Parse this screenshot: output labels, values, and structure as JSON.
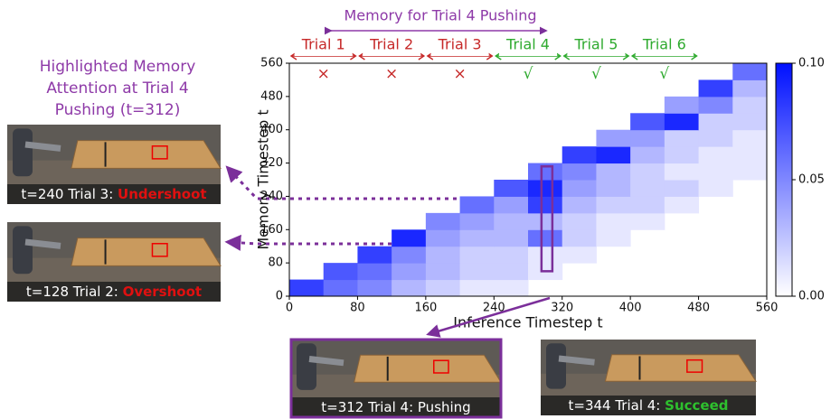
{
  "chart_data": {
    "type": "heatmap",
    "title": "Memory for Trial 4 Pushing",
    "x_label": "Inference Timestep t",
    "y_label": "Memory Timestep t",
    "xlim": [
      0,
      560
    ],
    "ylim": [
      0,
      560
    ],
    "xticks": [
      0,
      80,
      160,
      240,
      320,
      400,
      480,
      560
    ],
    "yticks": [
      0,
      80,
      160,
      240,
      320,
      400,
      480,
      560
    ],
    "x_bins": [
      0,
      40,
      80,
      120,
      160,
      200,
      240,
      280,
      320,
      360,
      400,
      440,
      480,
      520,
      560
    ],
    "y_bins": [
      0,
      40,
      80,
      120,
      160,
      200,
      240,
      280,
      320,
      360,
      400,
      440,
      480,
      520,
      560
    ],
    "zlim": [
      0,
      0.1
    ],
    "zticks": [
      {
        "value": 0,
        "label": "0.00"
      },
      {
        "value": 0.05,
        "label": "0.05"
      },
      {
        "value": 0.1,
        "label": "0.10"
      }
    ],
    "colormap": [
      "#ffffff",
      "#0010ff"
    ],
    "z": [
      [
        0.08,
        0.06,
        0.05,
        0.03,
        0.02,
        0.01,
        0.01,
        null,
        null,
        null,
        null,
        null,
        null,
        null
      ],
      [
        null,
        0.07,
        0.06,
        0.04,
        0.03,
        0.02,
        0.02,
        0.01,
        null,
        null,
        null,
        null,
        null,
        null
      ],
      [
        null,
        null,
        0.08,
        0.05,
        0.03,
        0.02,
        0.02,
        0.01,
        0.01,
        null,
        null,
        null,
        null,
        null
      ],
      [
        null,
        null,
        null,
        0.09,
        0.04,
        0.03,
        0.03,
        0.06,
        0.02,
        0.01,
        null,
        null,
        null,
        null
      ],
      [
        null,
        null,
        null,
        null,
        0.05,
        0.04,
        0.03,
        0.03,
        0.02,
        0.01,
        0.01,
        null,
        null,
        null
      ],
      [
        null,
        null,
        null,
        null,
        null,
        0.06,
        0.04,
        0.08,
        0.03,
        0.02,
        0.02,
        0.01,
        null,
        null
      ],
      [
        null,
        null,
        null,
        null,
        null,
        null,
        0.07,
        0.09,
        0.04,
        0.03,
        0.02,
        0.02,
        0.01,
        null
      ],
      [
        null,
        null,
        null,
        null,
        null,
        null,
        null,
        0.06,
        0.05,
        0.03,
        0.02,
        0.01,
        0.01,
        0.01
      ],
      [
        null,
        null,
        null,
        null,
        null,
        null,
        null,
        null,
        0.08,
        0.09,
        0.03,
        0.02,
        0.01,
        0.01
      ],
      [
        null,
        null,
        null,
        null,
        null,
        null,
        null,
        null,
        null,
        0.04,
        0.04,
        0.02,
        0.02,
        0.01
      ],
      [
        null,
        null,
        null,
        null,
        null,
        null,
        null,
        null,
        null,
        null,
        0.07,
        0.09,
        0.02,
        0.02
      ],
      [
        null,
        null,
        null,
        null,
        null,
        null,
        null,
        null,
        null,
        null,
        null,
        0.04,
        0.05,
        0.02
      ],
      [
        null,
        null,
        null,
        null,
        null,
        null,
        null,
        null,
        null,
        null,
        null,
        null,
        0.08,
        0.03
      ],
      [
        null,
        null,
        null,
        null,
        null,
        null,
        null,
        null,
        null,
        null,
        null,
        null,
        null,
        0.06
      ]
    ],
    "trials": [
      {
        "label": "Trial 1",
        "mark": "×",
        "color": "#c62828"
      },
      {
        "label": "Trial 2",
        "mark": "×",
        "color": "#c62828"
      },
      {
        "label": "Trial 3",
        "mark": "×",
        "color": "#c62828"
      },
      {
        "label": "Trial 4",
        "mark": "√",
        "color": "#2eaa2e"
      },
      {
        "label": "Trial 5",
        "mark": "√",
        "color": "#2eaa2e"
      },
      {
        "label": "Trial 6",
        "mark": "√",
        "color": "#2eaa2e"
      }
    ],
    "side_note": [
      "Highlighted Memory",
      "Attention at Trial 4",
      "Pushing (t=312)"
    ],
    "panels": [
      {
        "caption": "t=240  Trial 3: ",
        "outcome": "Undershoot",
        "outcome_color": "#e01010"
      },
      {
        "caption": "t=128  Trial 2: ",
        "outcome": "Overshoot",
        "outcome_color": "#e01010"
      },
      {
        "caption": "t=312  Trial 4: Pushing"
      },
      {
        "caption": "t=344  Trial 4: ",
        "outcome": "Succeed",
        "outcome_color": "#2ec02e"
      }
    ]
  }
}
